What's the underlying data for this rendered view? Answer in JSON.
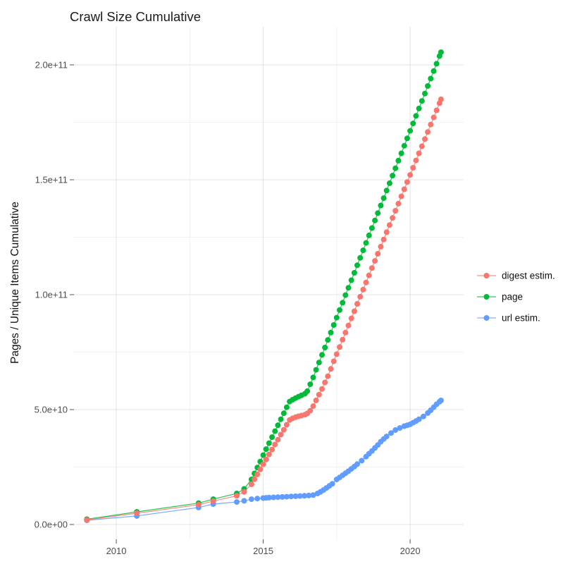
{
  "title": "Crawl Size Cumulative",
  "y_axis_title": "Pages / Unique Items Cumulative",
  "chart_data": {
    "type": "scatter",
    "title": "Crawl Size Cumulative",
    "xlabel": "",
    "ylabel": "Pages / Unique Items Cumulative",
    "grid": true,
    "legend_position": "right",
    "value_scale_note": "y values are billions (1e9 items)",
    "xlim": [
      2008.56,
      2021.82
    ],
    "ylim_e9": [
      -6.44,
      216.56
    ],
    "x_ticks": [
      {
        "value": 2010,
        "label": "2010"
      },
      {
        "value": 2015,
        "label": "2015"
      },
      {
        "value": 2020,
        "label": "2020"
      }
    ],
    "x_minor": [
      2012.5,
      2017.5
    ],
    "y_ticks": [
      {
        "value_e9": 0,
        "label": "0.0e+00"
      },
      {
        "value_e9": 50,
        "label": "5.0e+10"
      },
      {
        "value_e9": 100,
        "label": "1.0e+11"
      },
      {
        "value_e9": 150,
        "label": "1.5e+11"
      },
      {
        "value_e9": 200,
        "label": "2.0e+11"
      }
    ],
    "y_minor_e9": [
      25,
      75,
      125,
      175
    ],
    "series": [
      {
        "name": "digest estim.",
        "color": "#F8766D",
        "points": [
          [
            2009.0,
            2.0
          ],
          [
            2010.7,
            4.9
          ],
          [
            2012.8,
            8.6
          ],
          [
            2013.3,
            10.2
          ],
          [
            2014.1,
            12.5
          ],
          [
            2014.35,
            14.2
          ],
          [
            2014.6,
            17.5
          ],
          [
            2014.7,
            19.7
          ],
          [
            2014.8,
            21.8
          ],
          [
            2014.9,
            24.0
          ],
          [
            2015.0,
            26.2
          ],
          [
            2015.1,
            28.3
          ],
          [
            2015.2,
            30.5
          ],
          [
            2015.3,
            32.6
          ],
          [
            2015.4,
            34.8
          ],
          [
            2015.5,
            36.9
          ],
          [
            2015.6,
            39.1
          ],
          [
            2015.7,
            41.2
          ],
          [
            2015.8,
            43.4
          ],
          [
            2015.9,
            45.5
          ],
          [
            2016.0,
            46.2
          ],
          [
            2016.1,
            46.7
          ],
          [
            2016.2,
            47.1
          ],
          [
            2016.3,
            47.4
          ],
          [
            2016.42,
            47.8
          ],
          [
            2016.5,
            48.3
          ],
          [
            2016.6,
            49.5
          ],
          [
            2016.7,
            51.5
          ],
          [
            2016.8,
            54.0
          ],
          [
            2016.9,
            56.5
          ],
          [
            2017.0,
            59.0
          ],
          [
            2017.1,
            61.8
          ],
          [
            2017.2,
            64.5
          ],
          [
            2017.3,
            67.7
          ],
          [
            2017.4,
            71.0
          ],
          [
            2017.5,
            74.1
          ],
          [
            2017.6,
            77.2
          ],
          [
            2017.7,
            80.4
          ],
          [
            2017.8,
            83.5
          ],
          [
            2017.9,
            86.6
          ],
          [
            2018.0,
            89.7
          ],
          [
            2018.1,
            92.8
          ],
          [
            2018.2,
            96.0
          ],
          [
            2018.3,
            99.1
          ],
          [
            2018.4,
            102.2
          ],
          [
            2018.5,
            105.3
          ],
          [
            2018.6,
            108.4
          ],
          [
            2018.7,
            111.6
          ],
          [
            2018.8,
            114.7
          ],
          [
            2018.9,
            117.8
          ],
          [
            2019.0,
            120.9
          ],
          [
            2019.1,
            124.0
          ],
          [
            2019.2,
            127.2
          ],
          [
            2019.3,
            130.3
          ],
          [
            2019.4,
            133.4
          ],
          [
            2019.5,
            136.5
          ],
          [
            2019.6,
            139.6
          ],
          [
            2019.7,
            142.8
          ],
          [
            2019.8,
            145.9
          ],
          [
            2019.9,
            149.0
          ],
          [
            2020.0,
            152.1
          ],
          [
            2020.1,
            155.2
          ],
          [
            2020.2,
            158.4
          ],
          [
            2020.3,
            161.5
          ],
          [
            2020.4,
            164.6
          ],
          [
            2020.5,
            167.7
          ],
          [
            2020.6,
            170.8
          ],
          [
            2020.7,
            174.0
          ],
          [
            2020.8,
            177.1
          ],
          [
            2020.9,
            180.2
          ],
          [
            2021.0,
            183.3
          ],
          [
            2021.05,
            185.0
          ]
        ]
      },
      {
        "name": "page",
        "color": "#00BA38",
        "points": [
          [
            2009.0,
            2.3
          ],
          [
            2010.7,
            5.5
          ],
          [
            2012.8,
            9.3
          ],
          [
            2013.3,
            11.0
          ],
          [
            2014.1,
            13.5
          ],
          [
            2014.35,
            15.5
          ],
          [
            2014.6,
            19.6
          ],
          [
            2014.7,
            22.2
          ],
          [
            2014.8,
            24.8
          ],
          [
            2014.9,
            27.4
          ],
          [
            2015.0,
            30.2
          ],
          [
            2015.1,
            32.8
          ],
          [
            2015.2,
            35.4
          ],
          [
            2015.3,
            38.0
          ],
          [
            2015.4,
            40.6
          ],
          [
            2015.5,
            43.2
          ],
          [
            2015.6,
            45.8
          ],
          [
            2015.7,
            48.4
          ],
          [
            2015.8,
            51.0
          ],
          [
            2015.9,
            53.5
          ],
          [
            2016.0,
            54.3
          ],
          [
            2016.1,
            55.0
          ],
          [
            2016.2,
            55.6
          ],
          [
            2016.3,
            56.2
          ],
          [
            2016.42,
            56.9
          ],
          [
            2016.5,
            58.0
          ],
          [
            2016.6,
            61.0
          ],
          [
            2016.7,
            64.0
          ],
          [
            2016.8,
            67.3
          ],
          [
            2016.9,
            70.5
          ],
          [
            2017.0,
            73.8
          ],
          [
            2017.1,
            77.0
          ],
          [
            2017.2,
            80.3
          ],
          [
            2017.3,
            83.5
          ],
          [
            2017.4,
            86.8
          ],
          [
            2017.5,
            90.0
          ],
          [
            2017.6,
            93.3
          ],
          [
            2017.7,
            96.5
          ],
          [
            2017.8,
            99.8
          ],
          [
            2017.9,
            103.0
          ],
          [
            2018.0,
            106.3
          ],
          [
            2018.1,
            109.5
          ],
          [
            2018.2,
            112.8
          ],
          [
            2018.3,
            116.0
          ],
          [
            2018.4,
            119.3
          ],
          [
            2018.5,
            122.5
          ],
          [
            2018.6,
            125.8
          ],
          [
            2018.7,
            129.0
          ],
          [
            2018.8,
            132.3
          ],
          [
            2018.9,
            135.5
          ],
          [
            2019.0,
            138.8
          ],
          [
            2019.1,
            142.0
          ],
          [
            2019.2,
            145.3
          ],
          [
            2019.3,
            148.5
          ],
          [
            2019.4,
            151.8
          ],
          [
            2019.5,
            155.0
          ],
          [
            2019.6,
            158.3
          ],
          [
            2019.7,
            161.5
          ],
          [
            2019.8,
            164.8
          ],
          [
            2019.9,
            168.0
          ],
          [
            2020.0,
            171.3
          ],
          [
            2020.1,
            174.5
          ],
          [
            2020.2,
            177.8
          ],
          [
            2020.3,
            181.0
          ],
          [
            2020.4,
            184.3
          ],
          [
            2020.5,
            187.5
          ],
          [
            2020.6,
            190.8
          ],
          [
            2020.7,
            194.0
          ],
          [
            2020.8,
            197.3
          ],
          [
            2020.9,
            200.5
          ],
          [
            2021.0,
            203.8
          ],
          [
            2021.05,
            205.5
          ]
        ]
      },
      {
        "name": "url estim.",
        "color": "#619CFF",
        "points": [
          [
            2009.0,
            1.8
          ],
          [
            2010.7,
            3.7
          ],
          [
            2012.8,
            7.4
          ],
          [
            2013.3,
            8.9
          ],
          [
            2014.1,
            9.8
          ],
          [
            2014.35,
            10.3
          ],
          [
            2014.6,
            11.0
          ],
          [
            2014.8,
            11.3
          ],
          [
            2015.0,
            11.5
          ],
          [
            2015.1,
            11.6
          ],
          [
            2015.2,
            11.7
          ],
          [
            2015.35,
            11.8
          ],
          [
            2015.5,
            11.9
          ],
          [
            2015.65,
            12.0
          ],
          [
            2015.8,
            12.1
          ],
          [
            2015.95,
            12.2
          ],
          [
            2016.1,
            12.3
          ],
          [
            2016.25,
            12.4
          ],
          [
            2016.4,
            12.5
          ],
          [
            2016.55,
            12.6
          ],
          [
            2016.7,
            12.8
          ],
          [
            2016.85,
            13.5
          ],
          [
            2016.95,
            14.2
          ],
          [
            2017.05,
            15.0
          ],
          [
            2017.15,
            15.9
          ],
          [
            2017.25,
            16.8
          ],
          [
            2017.35,
            17.7
          ],
          [
            2017.5,
            19.6
          ],
          [
            2017.6,
            20.5
          ],
          [
            2017.7,
            21.4
          ],
          [
            2017.8,
            22.3
          ],
          [
            2017.9,
            23.2
          ],
          [
            2018.0,
            24.2
          ],
          [
            2018.1,
            25.2
          ],
          [
            2018.2,
            26.3
          ],
          [
            2018.35,
            27.8
          ],
          [
            2018.5,
            29.5
          ],
          [
            2018.6,
            30.8
          ],
          [
            2018.7,
            32.0
          ],
          [
            2018.8,
            33.3
          ],
          [
            2018.9,
            34.6
          ],
          [
            2019.0,
            36.0
          ],
          [
            2019.1,
            37.2
          ],
          [
            2019.2,
            38.3
          ],
          [
            2019.35,
            39.8
          ],
          [
            2019.5,
            41.1
          ],
          [
            2019.65,
            42.0
          ],
          [
            2019.8,
            42.8
          ],
          [
            2019.9,
            43.2
          ],
          [
            2020.0,
            43.6
          ],
          [
            2020.1,
            44.3
          ],
          [
            2020.2,
            45.0
          ],
          [
            2020.3,
            45.8
          ],
          [
            2020.45,
            47.0
          ],
          [
            2020.6,
            48.5
          ],
          [
            2020.7,
            49.7
          ],
          [
            2020.8,
            51.0
          ],
          [
            2020.9,
            52.3
          ],
          [
            2021.0,
            53.4
          ],
          [
            2021.05,
            54.0
          ]
        ]
      }
    ]
  },
  "legend": {
    "items": [
      {
        "label": "digest estim.",
        "color": "#F8766D"
      },
      {
        "label": "page",
        "color": "#00BA38"
      },
      {
        "label": "url estim.",
        "color": "#619CFF"
      }
    ]
  }
}
